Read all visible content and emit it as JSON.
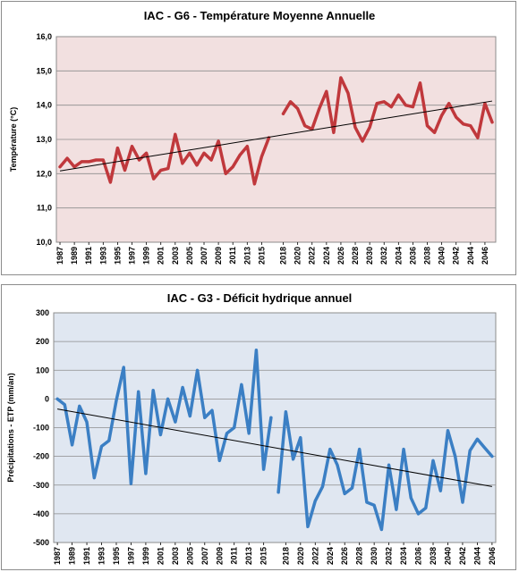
{
  "chart_data": [
    {
      "type": "line",
      "title": "IAC - G6 - Température Moyenne Annuelle",
      "xlabel": "",
      "ylabel": "Température (°C)",
      "ylim": [
        10.0,
        16.0
      ],
      "yticks": [
        "10,0",
        "11,0",
        "12,0",
        "13,0",
        "14,0",
        "15,0",
        "16,0"
      ],
      "xticks": [
        "1987",
        "1989",
        "1991",
        "1993",
        "1995",
        "1997",
        "1999",
        "2001",
        "2003",
        "2005",
        "2007",
        "2009",
        "2011",
        "2013",
        "2015",
        "2018",
        "2020",
        "2022",
        "2024",
        "2026",
        "2028",
        "2030",
        "2032",
        "2034",
        "2036",
        "2038",
        "2040",
        "2042",
        "2044",
        "2046"
      ],
      "grid": true,
      "legend": "none",
      "colors": {
        "line": "#c0383c",
        "trend": "#000000",
        "plot_bg": "#f2e0e0",
        "grid": "#8c8c8c"
      },
      "series": [
        {
          "values": [
            [
              1987,
              12.2
            ],
            [
              1988,
              12.45
            ],
            [
              1989,
              12.2
            ],
            [
              1990,
              12.35
            ],
            [
              1991,
              12.35
            ],
            [
              1992,
              12.4
            ],
            [
              1993,
              12.4
            ],
            [
              1994,
              11.75
            ],
            [
              1995,
              12.75
            ],
            [
              1996,
              12.1
            ],
            [
              1997,
              12.8
            ],
            [
              1998,
              12.4
            ],
            [
              1999,
              12.6
            ],
            [
              2000,
              11.85
            ],
            [
              2001,
              12.1
            ],
            [
              2002,
              12.15
            ],
            [
              2003,
              13.15
            ],
            [
              2004,
              12.3
            ],
            [
              2005,
              12.6
            ],
            [
              2006,
              12.25
            ],
            [
              2007,
              12.6
            ],
            [
              2008,
              12.4
            ],
            [
              2009,
              12.95
            ],
            [
              2010,
              12.0
            ],
            [
              2011,
              12.2
            ],
            [
              2012,
              12.55
            ],
            [
              2013,
              12.8
            ],
            [
              2014,
              11.7
            ],
            [
              2015,
              12.5
            ],
            [
              2016,
              13.05
            ],
            null,
            [
              2018,
              13.75
            ],
            [
              2019,
              14.1
            ],
            [
              2020,
              13.9
            ],
            [
              2021,
              13.4
            ],
            [
              2022,
              13.3
            ],
            [
              2023,
              13.9
            ],
            [
              2024,
              14.4
            ],
            [
              2025,
              13.2
            ],
            [
              2026,
              14.8
            ],
            [
              2027,
              14.35
            ],
            [
              2028,
              13.35
            ],
            [
              2029,
              12.95
            ],
            [
              2030,
              13.35
            ],
            [
              2031,
              14.05
            ],
            [
              2032,
              14.1
            ],
            [
              2033,
              13.95
            ],
            [
              2034,
              14.3
            ],
            [
              2035,
              14.0
            ],
            [
              2036,
              13.95
            ],
            [
              2037,
              14.65
            ],
            [
              2038,
              13.4
            ],
            [
              2039,
              13.2
            ],
            [
              2040,
              13.7
            ],
            [
              2041,
              14.05
            ],
            [
              2042,
              13.65
            ],
            [
              2043,
              13.45
            ],
            [
              2044,
              13.4
            ],
            [
              2045,
              13.05
            ],
            [
              2046,
              14.05
            ],
            [
              2047,
              13.5
            ]
          ]
        }
      ],
      "trendline": [
        [
          1987,
          12.08
        ],
        [
          2047,
          14.12
        ]
      ]
    },
    {
      "type": "line",
      "title": "IAC - G3 - Déficit hydrique annuel",
      "xlabel": "",
      "ylabel": "Précipitations - ETP (mm/an)",
      "ylim": [
        -500,
        300
      ],
      "yticks": [
        "-500",
        "-400",
        "-300",
        "-200",
        "-100",
        "0",
        "100",
        "200",
        "300"
      ],
      "xticks": [
        "1987",
        "1989",
        "1991",
        "1993",
        "1995",
        "1997",
        "1999",
        "2001",
        "2003",
        "2005",
        "2007",
        "2009",
        "2011",
        "2013",
        "2015",
        "2018",
        "2020",
        "2022",
        "2024",
        "2026",
        "2028",
        "2030",
        "2032",
        "2034",
        "2036",
        "2038",
        "2040",
        "2042",
        "2044",
        "2046"
      ],
      "grid": true,
      "legend": "none",
      "colors": {
        "line": "#3b7fc4",
        "trend": "#000000",
        "plot_bg": "#e0e7f1",
        "grid": "#8c8c8c"
      },
      "series": [
        {
          "values": [
            [
              1987,
              0
            ],
            [
              1988,
              -20
            ],
            [
              1989,
              -160
            ],
            [
              1990,
              -25
            ],
            [
              1991,
              -80
            ],
            [
              1992,
              -275
            ],
            [
              1993,
              -165
            ],
            [
              1994,
              -145
            ],
            [
              1995,
              -5
            ],
            [
              1996,
              110
            ],
            [
              1997,
              -295
            ],
            [
              1998,
              25
            ],
            [
              1999,
              -260
            ],
            [
              2000,
              30
            ],
            [
              2001,
              -125
            ],
            [
              2002,
              0
            ],
            [
              2003,
              -80
            ],
            [
              2004,
              40
            ],
            [
              2005,
              -60
            ],
            [
              2006,
              100
            ],
            [
              2007,
              -65
            ],
            [
              2008,
              -40
            ],
            [
              2009,
              -215
            ],
            [
              2010,
              -120
            ],
            [
              2011,
              -100
            ],
            [
              2012,
              50
            ],
            [
              2013,
              -120
            ],
            [
              2014,
              170
            ],
            [
              2015,
              -245
            ],
            [
              2016,
              -65
            ],
            null,
            [
              2017,
              -325
            ],
            [
              2018,
              -45
            ],
            [
              2019,
              -210
            ],
            [
              2020,
              -135
            ],
            [
              2021,
              -445
            ],
            [
              2022,
              -355
            ],
            [
              2023,
              -305
            ],
            [
              2024,
              -175
            ],
            [
              2025,
              -230
            ],
            [
              2026,
              -330
            ],
            [
              2027,
              -310
            ],
            [
              2028,
              -175
            ],
            [
              2029,
              -360
            ],
            [
              2030,
              -370
            ],
            [
              2031,
              -455
            ],
            [
              2032,
              -230
            ],
            [
              2033,
              -385
            ],
            [
              2034,
              -175
            ],
            [
              2035,
              -345
            ],
            [
              2036,
              -400
            ],
            [
              2037,
              -380
            ],
            [
              2038,
              -215
            ],
            [
              2039,
              -320
            ],
            [
              2040,
              -110
            ],
            [
              2041,
              -200
            ],
            [
              2042,
              -360
            ],
            [
              2043,
              -180
            ],
            [
              2044,
              -140
            ],
            [
              2045,
              -170
            ],
            [
              2046,
              -200
            ]
          ]
        }
      ],
      "trendline": [
        [
          1987,
          -35
        ],
        [
          2046,
          -305
        ]
      ]
    }
  ]
}
